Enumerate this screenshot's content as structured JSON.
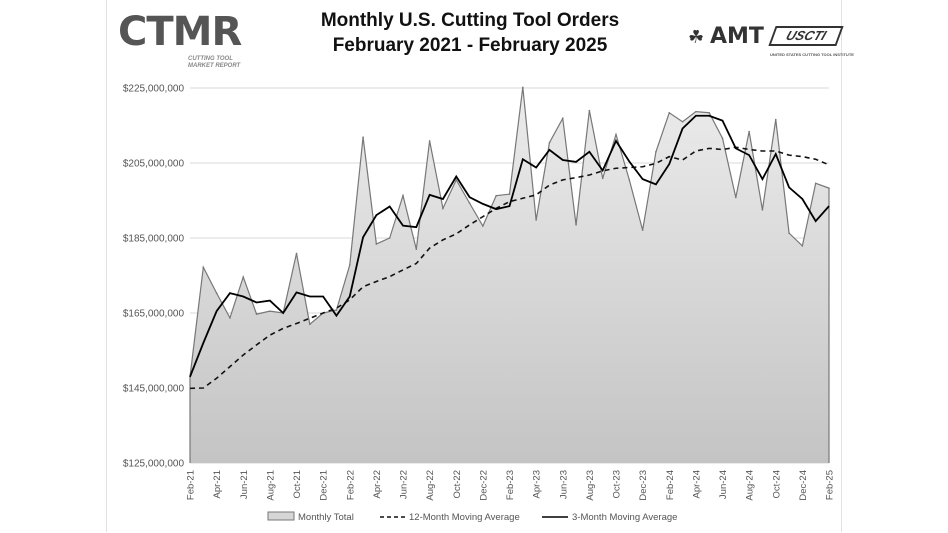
{
  "header": {
    "title_line1": "Monthly U.S. Cutting Tool Orders",
    "title_line2": "February 2021 - February 2025",
    "logo_left": "CTMR",
    "logo_left_sub1": "CUTTING TOOL",
    "logo_left_sub2": "MARKET REPORT",
    "logo_right_1": "AMT",
    "logo_right_2": "USCTI",
    "logo_right_2_sub": "UNITED STATES CUTTING TOOL INSTITUTE"
  },
  "colors": {
    "area_fill": "#d6d6d6",
    "monthly_line": "#777777",
    "ma12": "#111111",
    "ma3": "#000000",
    "grid": "#d9d9d9"
  },
  "chart_data": {
    "type": "area",
    "title": "Monthly U.S. Cutting Tool Orders February 2021 - February 2025",
    "xlabel": "",
    "ylabel": "",
    "ylim": [
      125000000,
      225000000
    ],
    "yticks": [
      "$125,000,000",
      "$145,000,000",
      "$165,000,000",
      "$185,000,000",
      "$205,000,000",
      "$225,000,000"
    ],
    "ytick_values": [
      125000000,
      145000000,
      165000000,
      185000000,
      205000000,
      225000000
    ],
    "grid": true,
    "legend_placement": "bottom",
    "categories": [
      "Feb-21",
      "Mar-21",
      "Apr-21",
      "May-21",
      "Jun-21",
      "Jul-21",
      "Aug-21",
      "Sep-21",
      "Oct-21",
      "Nov-21",
      "Dec-21",
      "Jan-22",
      "Feb-22",
      "Mar-22",
      "Apr-22",
      "May-22",
      "Jun-22",
      "Jul-22",
      "Aug-22",
      "Sep-22",
      "Oct-22",
      "Nov-22",
      "Dec-22",
      "Jan-23",
      "Feb-23",
      "Mar-23",
      "Apr-23",
      "May-23",
      "Jun-23",
      "Jul-23",
      "Aug-23",
      "Sep-23",
      "Oct-23",
      "Nov-23",
      "Dec-23",
      "Jan-24",
      "Feb-24",
      "Mar-24",
      "Apr-24",
      "May-24",
      "Jun-24",
      "Jul-24",
      "Aug-24",
      "Sep-24",
      "Oct-24",
      "Nov-24",
      "Dec-24",
      "Jan-25",
      "Feb-25"
    ],
    "xtick_labels": [
      "Feb-21",
      "Apr-21",
      "Jun-21",
      "Aug-21",
      "Oct-21",
      "Dec-21",
      "Feb-22",
      "Apr-22",
      "Jun-22",
      "Aug-22",
      "Oct-22",
      "Dec-22",
      "Feb-23",
      "Apr-23",
      "Jun-23",
      "Aug-23",
      "Oct-23",
      "Dec-23",
      "Feb-24",
      "Apr-24",
      "Jun-24",
      "Aug-24",
      "Oct-24",
      "Dec-24",
      "Feb-25"
    ],
    "series": [
      {
        "name": "Monthly Total",
        "style": "area",
        "values": [
          148.0,
          177.2,
          170.3,
          163.7,
          174.6,
          164.7,
          165.5,
          165.0,
          180.9,
          162.0,
          165.0,
          165.8,
          177.8,
          211.9,
          183.4,
          185.0,
          196.3,
          182.0,
          210.9,
          192.9,
          200.5,
          194.3,
          188.2,
          196.3,
          196.7,
          225.2,
          189.8,
          210.4,
          216.9,
          188.5,
          219.0,
          200.9,
          212.6,
          200.5,
          187.1,
          208.0,
          218.4,
          216.0,
          218.7,
          218.4,
          211.6,
          195.8,
          213.4,
          192.5,
          216.6,
          186.3,
          182.9,
          199.6,
          198.3
        ]
      },
      {
        "name": "12-Month Moving Average",
        "style": "dashed",
        "values": [
          144.9,
          145.0,
          147.6,
          150.7,
          153.8,
          156.5,
          159.1,
          160.9,
          162.2,
          163.6,
          165.0,
          166.3,
          168.5,
          172.0,
          173.4,
          174.7,
          176.5,
          178.2,
          182.3,
          184.5,
          186.1,
          188.5,
          190.7,
          192.9,
          194.7,
          195.6,
          196.5,
          199.1,
          200.5,
          201.1,
          201.8,
          202.9,
          203.6,
          203.8,
          204.0,
          204.9,
          206.7,
          205.8,
          208.2,
          208.9,
          208.6,
          209.2,
          208.6,
          208.2,
          208.2,
          207.1,
          206.7,
          206.0,
          204.5
        ]
      },
      {
        "name": "3-Month Moving Average",
        "style": "solid",
        "values": [
          148.0,
          157.0,
          165.5,
          170.3,
          169.4,
          167.8,
          168.3,
          165.0,
          170.5,
          169.4,
          169.4,
          164.3,
          169.4,
          185.2,
          191.1,
          193.4,
          188.3,
          187.9,
          196.5,
          195.4,
          201.4,
          195.9,
          194.1,
          192.7,
          193.5,
          206.0,
          203.8,
          208.5,
          205.8,
          205.3,
          208.0,
          203.0,
          210.9,
          205.4,
          200.7,
          199.3,
          204.7,
          214.2,
          217.6,
          217.6,
          216.3,
          208.9,
          207.1,
          200.7,
          207.4,
          198.5,
          195.4,
          189.5,
          193.5
        ]
      }
    ],
    "value_unit": "millions USD"
  }
}
